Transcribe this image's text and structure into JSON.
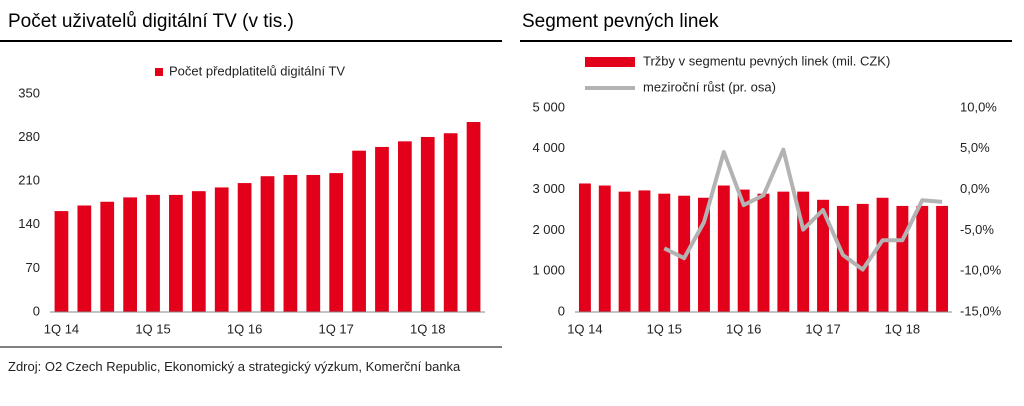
{
  "chart_data": [
    {
      "type": "bar",
      "title": "Počet uživatelů digitální TV (v tis.)",
      "categories": [
        "1Q 14",
        null,
        null,
        null,
        "1Q 15",
        null,
        null,
        null,
        "1Q 16",
        null,
        null,
        null,
        "1Q 17",
        null,
        null,
        null,
        "1Q 18",
        null,
        null
      ],
      "series": [
        {
          "name": "Počet předplatitelů digitální TV",
          "color": "#e2001a",
          "values": [
            162,
            171,
            177,
            184,
            188,
            188,
            194,
            200,
            207,
            218,
            220,
            220,
            223,
            259,
            265,
            274,
            281,
            287,
            305
          ]
        }
      ],
      "ylim": [
        0,
        350
      ],
      "yticks": [
        0,
        70,
        140,
        210,
        280,
        350
      ],
      "grid": false
    },
    {
      "type": "bar",
      "title": "Segment pevných linek",
      "categories": [
        "1Q 14",
        null,
        null,
        null,
        "1Q 15",
        null,
        null,
        null,
        "1Q 16",
        null,
        null,
        null,
        "1Q 17",
        null,
        null,
        null,
        "1Q 18",
        null,
        null
      ],
      "series": [
        {
          "name": "Tržby v segmentu pevných linek (mil. CZK)",
          "color": "#e2001a",
          "values": [
            3150,
            3100,
            2950,
            2980,
            2900,
            2850,
            2800,
            3100,
            3000,
            2900,
            2950,
            2950,
            2750,
            2600,
            2650,
            2800,
            2600,
            2600,
            2600
          ]
        },
        {
          "name": "meziroční růst (pr. osa)",
          "color": "#b3b3b3",
          "axis": "y2",
          "type": "line",
          "values": [
            null,
            null,
            null,
            null,
            -7.2,
            -8.4,
            -4,
            4.6,
            -1.9,
            -0.7,
            4.9,
            -4.9,
            -2.5,
            -8,
            -9.8,
            -6.2,
            -6.2,
            -1.3,
            -1.5
          ]
        }
      ],
      "ylim": [
        0,
        5000
      ],
      "yticks": [
        0,
        {
          "value": 1000,
          "label": "1 000"
        },
        {
          "value": 2000,
          "label": "2 000"
        },
        {
          "value": 3000,
          "label": "3 000"
        },
        {
          "value": 4000,
          "label": "4 000"
        },
        {
          "value": 5000,
          "label": "5 000"
        }
      ],
      "y2lim": [
        -15,
        10
      ],
      "y2ticks": [
        {
          "value": -15,
          "label": "-15,0%"
        },
        {
          "value": -10,
          "label": "-10,0%"
        },
        {
          "value": -5,
          "label": "-5,0%"
        },
        {
          "value": 0,
          "label": "0,0%"
        },
        {
          "value": 5,
          "label": "5,0%"
        },
        {
          "value": 10,
          "label": "10,0%"
        }
      ],
      "grid": false
    }
  ],
  "source": "Zdroj: O2 Czech Republic, Ekonomický a strategický výzkum, Komerční banka"
}
